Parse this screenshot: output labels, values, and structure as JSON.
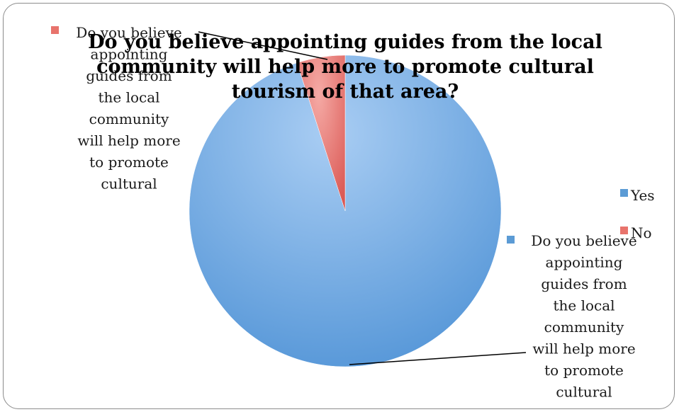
{
  "chart_data": {
    "type": "pie",
    "title": "Do you believe appointing guides from the local community will help more to promote cultural tourism of that area?",
    "title_lines": [
      "Do you believe appointing guides from the local",
      "community will help more to promote cultural",
      "tourism of that area?"
    ],
    "categories": [
      "Yes",
      "No"
    ],
    "values": [
      95,
      5
    ],
    "colors": [
      "#5b9bd5",
      "#e8736c"
    ],
    "legend_position": "right",
    "data_label_lines": [
      "Do you believe",
      "appointing",
      "guides from",
      "the local",
      "community",
      "will help more",
      "to promote",
      "cultural"
    ]
  },
  "legend": {
    "items": [
      {
        "label": "Yes",
        "color": "#5b9bd5"
      },
      {
        "label": "No",
        "color": "#e8736c"
      }
    ]
  }
}
